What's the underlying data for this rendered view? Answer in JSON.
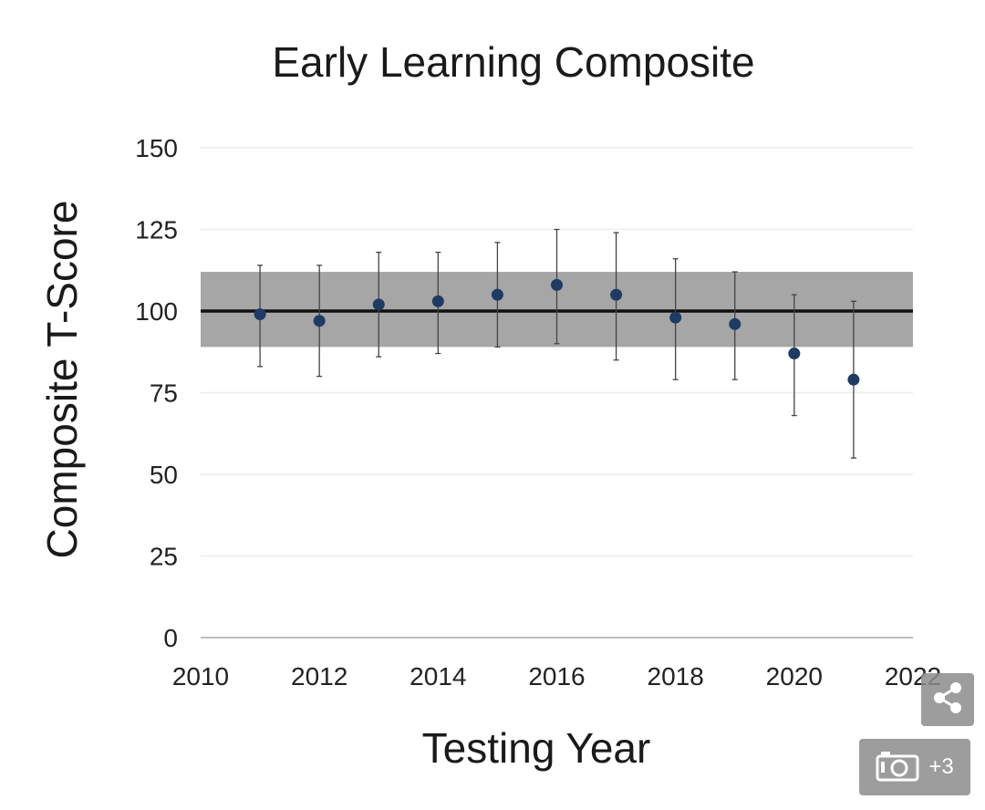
{
  "chart_data": {
    "type": "scatter",
    "title": "Early Learning Composite",
    "xlabel": "Testing Year",
    "ylabel": "Composite T-Score",
    "xlim": [
      2010,
      2022
    ],
    "ylim": [
      0,
      150
    ],
    "x_ticks": [
      "2010",
      "2012",
      "2014",
      "2016",
      "2018",
      "2020",
      "2022"
    ],
    "y_ticks": [
      "0",
      "25",
      "50",
      "75",
      "100",
      "125",
      "150"
    ],
    "grid": "horizontal",
    "reference_line": 100,
    "reference_band": [
      89,
      112
    ],
    "points": [
      {
        "x": 2011,
        "y": 99,
        "low": 83,
        "high": 114
      },
      {
        "x": 2012,
        "y": 97,
        "low": 80,
        "high": 114
      },
      {
        "x": 2013,
        "y": 102,
        "low": 86,
        "high": 118
      },
      {
        "x": 2014,
        "y": 103,
        "low": 87,
        "high": 118
      },
      {
        "x": 2015,
        "y": 105,
        "low": 89,
        "high": 121
      },
      {
        "x": 2016,
        "y": 108,
        "low": 90,
        "high": 125
      },
      {
        "x": 2017,
        "y": 105,
        "low": 85,
        "high": 124
      },
      {
        "x": 2018,
        "y": 98,
        "low": 79,
        "high": 116
      },
      {
        "x": 2019,
        "y": 96,
        "low": 79,
        "high": 112
      },
      {
        "x": 2020,
        "y": 87,
        "low": 68,
        "high": 105
      },
      {
        "x": 2021,
        "y": 79,
        "low": 55,
        "high": 103
      }
    ],
    "colors": {
      "point": "#1f3b63",
      "band": "#a6a6a6",
      "reference_line": "#111111",
      "error_bar": "#444444",
      "grid": "#ececec",
      "axis": "#bdbdbd"
    }
  },
  "overlay": {
    "share_icon": "share-icon",
    "gallery_icon": "camera-icon",
    "gallery_count": "+3"
  }
}
